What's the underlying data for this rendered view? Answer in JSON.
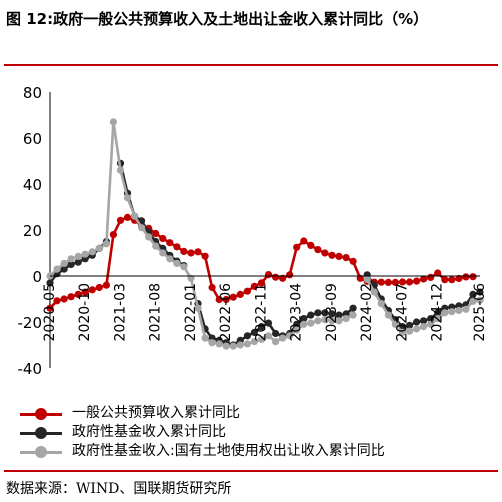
{
  "figure": {
    "title": "图 12:政府一般公共预算收入及土地出让金收入累计同比（%）",
    "source": "数据来源：WIND、国联期货研究所"
  },
  "colors": {
    "series1": "#c00000",
    "series2": "#262626",
    "series3": "#a6a6a6",
    "accent_rule": "#c00000"
  },
  "chart_data": {
    "type": "line",
    "title": "",
    "xlabel": "",
    "ylabel": "",
    "ylim": [
      -40,
      80
    ],
    "yticks": [
      "80",
      "60",
      "40",
      "20",
      "0",
      "-20",
      "-40"
    ],
    "ytick_values": [
      80,
      60,
      40,
      20,
      0,
      -20,
      -40
    ],
    "xlim": [
      "2020-05",
      "2025-06"
    ],
    "xtick_labels": [
      "2020-05",
      "2020-10",
      "2021-03",
      "2021-08",
      "2022-01",
      "2022-06",
      "2022-11",
      "2023-04",
      "2023-09",
      "2024-02",
      "2024-07",
      "2024-12",
      "2025-06"
    ],
    "grid": false,
    "legend_position": "bottom",
    "series": [
      {
        "name": "一般公共预算收入累计同比",
        "color": "#c00000",
        "marker": "circle",
        "points": [
          [
            "2020-05",
            -14
          ],
          [
            "2020-06",
            -10.8
          ],
          [
            "2020-07",
            -10
          ],
          [
            "2020-08",
            -9
          ],
          [
            "2020-09",
            -8
          ],
          [
            "2020-10",
            -7
          ],
          [
            "2020-11",
            -6
          ],
          [
            "2020-12",
            -5
          ],
          [
            "2021-01",
            -4
          ],
          [
            "2021-02",
            18
          ],
          [
            "2021-03",
            24.2
          ],
          [
            "2021-04",
            25.5
          ],
          [
            "2021-05",
            24.2
          ],
          [
            "2021-06",
            21.8
          ],
          [
            "2021-07",
            20.7
          ],
          [
            "2021-08",
            18.5
          ],
          [
            "2021-09",
            16.3
          ],
          [
            "2021-10",
            14.5
          ],
          [
            "2021-11",
            12.7
          ],
          [
            "2021-12",
            10.7
          ],
          [
            "2022-01",
            10
          ],
          [
            "2022-02",
            10.5
          ],
          [
            "2022-03",
            8.6
          ],
          [
            "2022-04",
            -5
          ],
          [
            "2022-05",
            -10.2
          ],
          [
            "2022-06",
            -10.2
          ],
          [
            "2022-07",
            -9.2
          ],
          [
            "2022-08",
            -8
          ],
          [
            "2022-09",
            -6.6
          ],
          [
            "2022-10",
            -4.5
          ],
          [
            "2022-11",
            -3
          ],
          [
            "2022-12",
            0.6
          ],
          [
            "2023-01",
            -0.5
          ],
          [
            "2023-02",
            -1
          ],
          [
            "2023-03",
            0.5
          ],
          [
            "2023-04",
            12.5
          ],
          [
            "2023-05",
            15.2
          ],
          [
            "2023-06",
            13.3
          ],
          [
            "2023-07",
            11.5
          ],
          [
            "2023-08",
            10
          ],
          [
            "2023-09",
            9
          ],
          [
            "2023-10",
            8.5
          ],
          [
            "2023-11",
            8
          ],
          [
            "2023-12",
            6.4
          ],
          [
            "2024-01",
            -1
          ],
          [
            "2024-02",
            -2.3
          ],
          [
            "2024-03",
            -2.7
          ],
          [
            "2024-04",
            -2.7
          ],
          [
            "2024-05",
            -2.8
          ],
          [
            "2024-06",
            -2.8
          ],
          [
            "2024-07",
            -2.6
          ],
          [
            "2024-08",
            -2.6
          ],
          [
            "2024-09",
            -2.2
          ],
          [
            "2024-10",
            -1.3
          ],
          [
            "2024-11",
            -0.6
          ],
          [
            "2024-12",
            1.3
          ],
          [
            "2025-01",
            -1.6
          ],
          [
            "2025-02",
            -1.6
          ],
          [
            "2025-03",
            -1.1
          ],
          [
            "2025-04",
            -0.4
          ],
          [
            "2025-05",
            -0.3
          ]
        ]
      },
      {
        "name": "政府性基金收入累计同比",
        "color": "#262626",
        "marker": "circle",
        "points": [
          [
            "2020-05",
            -3
          ],
          [
            "2020-06",
            1
          ],
          [
            "2020-07",
            3
          ],
          [
            "2020-08",
            5
          ],
          [
            "2020-09",
            6
          ],
          [
            "2020-10",
            7.5
          ],
          [
            "2020-11",
            9
          ],
          [
            "2020-12",
            12
          ],
          [
            "2021-01",
            15
          ],
          [
            "2021-03",
            49
          ],
          [
            "2021-04",
            36
          ],
          [
            "2021-05",
            26
          ],
          [
            "2021-06",
            24
          ],
          [
            "2021-07",
            19
          ],
          [
            "2021-08",
            15
          ],
          [
            "2021-09",
            12
          ],
          [
            "2021-10",
            9
          ],
          [
            "2021-11",
            6.5
          ],
          [
            "2021-12",
            4.5
          ],
          [
            "2022-02",
            -12
          ],
          [
            "2022-03",
            -23
          ],
          [
            "2022-04",
            -27
          ],
          [
            "2022-05",
            -28
          ],
          [
            "2022-06",
            -29
          ],
          [
            "2022-07",
            -30
          ],
          [
            "2022-08",
            -28
          ],
          [
            "2022-09",
            -26
          ],
          [
            "2022-10",
            -24.5
          ],
          [
            "2022-11",
            -22
          ],
          [
            "2022-12",
            -20.5
          ],
          [
            "2023-01",
            -25
          ],
          [
            "2023-02",
            -26
          ],
          [
            "2023-03",
            -25
          ],
          [
            "2023-04",
            -21
          ],
          [
            "2023-05",
            -18.5
          ],
          [
            "2023-06",
            -17
          ],
          [
            "2023-07",
            -16
          ],
          [
            "2023-08",
            -16
          ],
          [
            "2023-09",
            -16.5
          ],
          [
            "2023-10",
            -17
          ],
          [
            "2023-11",
            -16.5
          ],
          [
            "2023-12",
            -14
          ],
          [
            "2024-02",
            0.5
          ],
          [
            "2024-03",
            -4
          ],
          [
            "2024-04",
            -10
          ],
          [
            "2024-05",
            -15
          ],
          [
            "2024-06",
            -19
          ],
          [
            "2024-07",
            -22
          ],
          [
            "2024-08",
            -21.5
          ],
          [
            "2024-09",
            -20
          ],
          [
            "2024-10",
            -19.5
          ],
          [
            "2024-11",
            -18.5
          ],
          [
            "2024-12",
            -16
          ],
          [
            "2025-01",
            -14
          ],
          [
            "2025-02",
            -13.5
          ],
          [
            "2025-03",
            -13
          ],
          [
            "2025-04",
            -12.5
          ],
          [
            "2025-05",
            -8
          ],
          [
            "2025-06",
            -7
          ]
        ]
      },
      {
        "name": "政府性基金收入:国有土地使用权出让收入累计同比",
        "color": "#a6a6a6",
        "marker": "circle",
        "points": [
          [
            "2020-05",
            0
          ],
          [
            "2020-06",
            3
          ],
          [
            "2020-07",
            5.5
          ],
          [
            "2020-08",
            7.5
          ],
          [
            "2020-09",
            8.5
          ],
          [
            "2020-10",
            9.5
          ],
          [
            "2020-11",
            10.5
          ],
          [
            "2020-12",
            12
          ],
          [
            "2021-01",
            14
          ],
          [
            "2021-02",
            67
          ],
          [
            "2021-03",
            46
          ],
          [
            "2021-04",
            34
          ],
          [
            "2021-05",
            26
          ],
          [
            "2021-06",
            21
          ],
          [
            "2021-07",
            17
          ],
          [
            "2021-08",
            13
          ],
          [
            "2021-09",
            10
          ],
          [
            "2021-10",
            7.5
          ],
          [
            "2021-11",
            5.5
          ],
          [
            "2021-12",
            4
          ],
          [
            "2022-01",
            -1
          ],
          [
            "2022-02",
            -14
          ],
          [
            "2022-03",
            -27
          ],
          [
            "2022-04",
            -29
          ],
          [
            "2022-05",
            -29.5
          ],
          [
            "2022-06",
            -30.5
          ],
          [
            "2022-07",
            -30.5
          ],
          [
            "2022-08",
            -30
          ],
          [
            "2022-09",
            -29.5
          ],
          [
            "2022-10",
            -28.5
          ],
          [
            "2022-11",
            -27.5
          ],
          [
            "2022-12",
            -26
          ],
          [
            "2023-01",
            -28.5
          ],
          [
            "2023-02",
            -27
          ],
          [
            "2023-03",
            -26
          ],
          [
            "2023-04",
            -23.5
          ],
          [
            "2023-05",
            -21
          ],
          [
            "2023-06",
            -20.5
          ],
          [
            "2023-07",
            -19.5
          ],
          [
            "2023-08",
            -19
          ],
          [
            "2023-09",
            -19.5
          ],
          [
            "2023-10",
            -19.5
          ],
          [
            "2023-11",
            -18.5
          ],
          [
            "2023-12",
            -17
          ],
          [
            "2024-02",
            -1.5
          ],
          [
            "2024-03",
            -7
          ],
          [
            "2024-04",
            -12
          ],
          [
            "2024-05",
            -17
          ],
          [
            "2024-06",
            -21
          ],
          [
            "2024-07",
            -24.5
          ],
          [
            "2024-08",
            -24
          ],
          [
            "2024-09",
            -23
          ],
          [
            "2024-10",
            -22
          ],
          [
            "2024-11",
            -21
          ],
          [
            "2024-12",
            -18.5
          ],
          [
            "2025-01",
            -16
          ],
          [
            "2025-02",
            -15.5
          ],
          [
            "2025-03",
            -15
          ],
          [
            "2025-04",
            -14.5
          ],
          [
            "2025-05",
            -11
          ],
          [
            "2025-06",
            -10.5
          ]
        ]
      }
    ]
  }
}
